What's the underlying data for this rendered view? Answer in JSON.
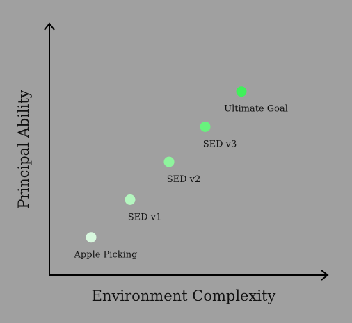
{
  "chart_data": {
    "type": "scatter",
    "xlabel": "Environment Complexity",
    "ylabel": "Principal Ability",
    "xlim": [
      0,
      10
    ],
    "ylim": [
      0,
      10
    ],
    "grid": false,
    "points": [
      {
        "label": "Apple Picking",
        "x": 1.5,
        "y": 1.5,
        "color": "#d8f8de"
      },
      {
        "label": "SED v1",
        "x": 2.9,
        "y": 3.0,
        "color": "#b4f6bf"
      },
      {
        "label": "SED v2",
        "x": 4.3,
        "y": 4.5,
        "color": "#8ef49d"
      },
      {
        "label": "SED v3",
        "x": 5.6,
        "y": 5.9,
        "color": "#68f27d"
      },
      {
        "label": "Ultimate Goal",
        "x": 6.9,
        "y": 7.3,
        "color": "#40f05a"
      }
    ]
  },
  "colors": {
    "background": "#a0a0a0",
    "axis": "#000000",
    "text": "#111111"
  }
}
